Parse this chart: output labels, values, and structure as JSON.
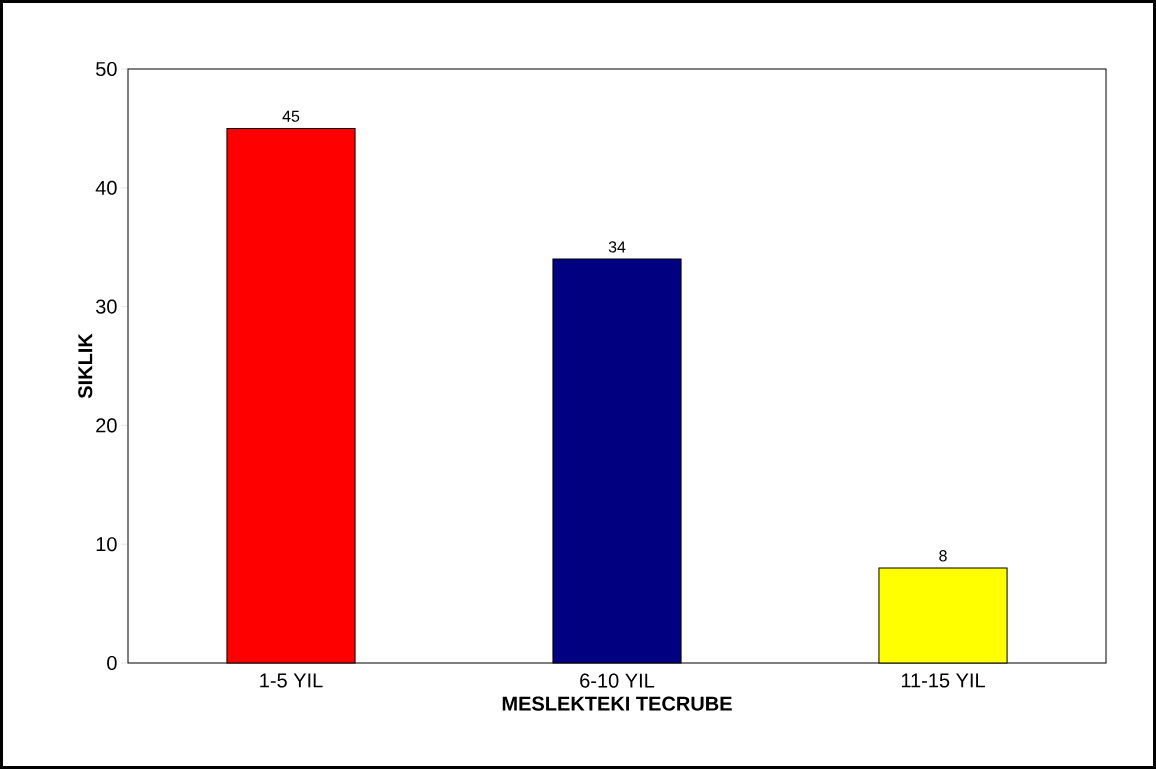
{
  "chart_data": {
    "type": "bar",
    "xlabel": "MESLEKTEKI TECRUBE",
    "ylabel": "SIKLIK",
    "categories": [
      "1-5 YIL",
      "6-10 YIL",
      "11-15 YIL"
    ],
    "values": [
      45,
      34,
      8
    ],
    "colors": [
      "#ff0000",
      "#000080",
      "#ffff00"
    ],
    "ylim": [
      0,
      50
    ],
    "yticks": [
      0,
      10,
      20,
      30,
      40,
      50
    ],
    "data_labels": true
  }
}
